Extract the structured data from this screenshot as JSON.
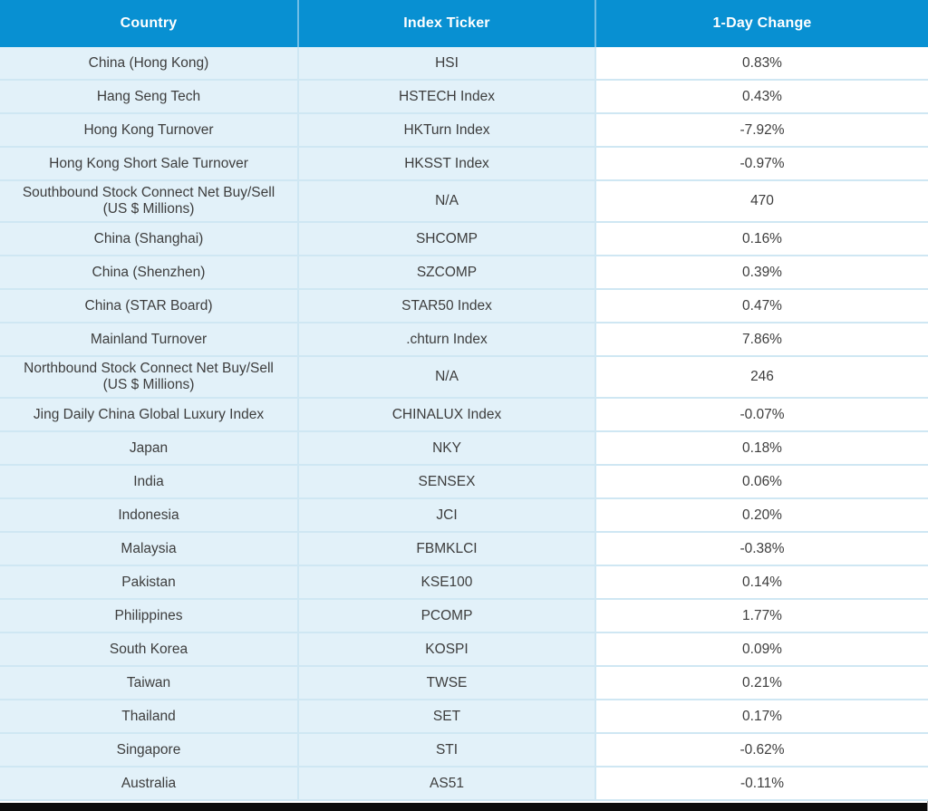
{
  "colors": {
    "header_background": "#0890d2",
    "header_text": "#ffffff",
    "row_background": "#e2f1f9",
    "change_column_background": "#ffffff",
    "grid_line": "#cfe7f3",
    "body_text": "#3d3d3d",
    "bottom_bar": "#0b0b0b"
  },
  "chart_data": {
    "type": "table",
    "columns": [
      "Country",
      "Index Ticker",
      "1-Day Change"
    ],
    "rows": [
      {
        "country": "China (Hong Kong)",
        "ticker": "HSI",
        "change": "0.83%"
      },
      {
        "country": "Hang Seng Tech",
        "ticker": "HSTECH Index",
        "change": "0.43%"
      },
      {
        "country": "Hong Kong Turnover",
        "ticker": "HKTurn Index",
        "change": "-7.92%"
      },
      {
        "country": "Hong Kong Short Sale Turnover",
        "ticker": "HKSST Index",
        "change": "-0.97%"
      },
      {
        "country": "Southbound Stock Connect Net Buy/Sell (US $ Millions)",
        "ticker": "N/A",
        "change": "470"
      },
      {
        "country": "China (Shanghai)",
        "ticker": "SHCOMP",
        "change": "0.16%"
      },
      {
        "country": "China (Shenzhen)",
        "ticker": "SZCOMP",
        "change": "0.39%"
      },
      {
        "country": "China (STAR Board)",
        "ticker": "STAR50 Index",
        "change": "0.47%"
      },
      {
        "country": "Mainland Turnover",
        "ticker": ".chturn Index",
        "change": "7.86%"
      },
      {
        "country": "Northbound Stock Connect Net Buy/Sell (US $ Millions)",
        "ticker": "N/A",
        "change": "246"
      },
      {
        "country": "Jing Daily China Global Luxury Index",
        "ticker": "CHINALUX Index",
        "change": "-0.07%"
      },
      {
        "country": "Japan",
        "ticker": "NKY",
        "change": "0.18%"
      },
      {
        "country": "India",
        "ticker": "SENSEX",
        "change": "0.06%"
      },
      {
        "country": "Indonesia",
        "ticker": "JCI",
        "change": "0.20%"
      },
      {
        "country": "Malaysia",
        "ticker": "FBMKLCI",
        "change": "-0.38%"
      },
      {
        "country": "Pakistan",
        "ticker": "KSE100",
        "change": "0.14%"
      },
      {
        "country": "Philippines",
        "ticker": "PCOMP",
        "change": "1.77%"
      },
      {
        "country": "South Korea",
        "ticker": "KOSPI",
        "change": "0.09%"
      },
      {
        "country": "Taiwan",
        "ticker": "TWSE",
        "change": "0.21%"
      },
      {
        "country": "Thailand",
        "ticker": "SET",
        "change": "0.17%"
      },
      {
        "country": "Singapore",
        "ticker": "STI",
        "change": "-0.62%"
      },
      {
        "country": "Australia",
        "ticker": "AS51",
        "change": "-0.11%"
      }
    ]
  }
}
